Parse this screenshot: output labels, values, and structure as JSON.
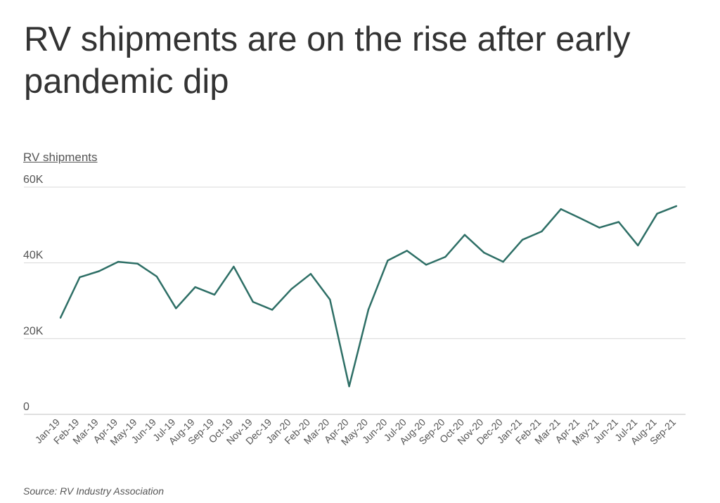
{
  "chart_data": {
    "type": "line",
    "title": "RV shipments are on the rise after early pandemic dip",
    "ylabel": "RV shipments",
    "source": "Source:  RV Industry Association",
    "ylim": [
      0,
      60000
    ],
    "yticks": [
      0,
      20000,
      40000,
      60000
    ],
    "ytick_labels": [
      "0",
      "20K",
      "40K",
      "60K"
    ],
    "grid": true,
    "line_color": "#2e6f66",
    "categories": [
      "Jan-19",
      "Feb-19",
      "Mar-19",
      "Apr-19",
      "May-19",
      "Jun-19",
      "Jul-19",
      "Aug-19",
      "Sep-19",
      "Oct-19",
      "Nov-19",
      "Dec-19",
      "Jan-20",
      "Feb-20",
      "Mar-20",
      "Apr-20",
      "May-20",
      "Jun-20",
      "Jul-20",
      "Aug-20",
      "Sep-20",
      "Oct-20",
      "Nov-20",
      "Dec-20",
      "Jan-21",
      "Feb-21",
      "Mar-21",
      "Apr-21",
      "May-21",
      "Jun-21",
      "Jul-21",
      "Aug-21",
      "Sep-21"
    ],
    "series": [
      {
        "values": [
          25500,
          36200,
          37800,
          40300,
          39800,
          36400,
          28000,
          33600,
          31600,
          39000,
          29700,
          27600,
          33100,
          37100,
          30300,
          7400,
          27700,
          40600,
          43200,
          39500,
          41600,
          47400,
          42700,
          40300,
          46100,
          48300,
          54200,
          51800,
          49300,
          50800,
          44600,
          53000,
          55000
        ]
      }
    ]
  }
}
